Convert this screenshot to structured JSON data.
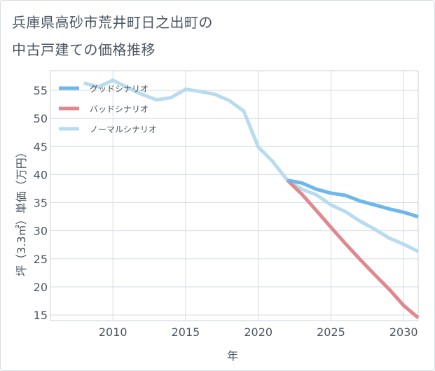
{
  "title_line1": "兵庫県高砂市荒井町日之出町の",
  "title_line2": "中古戸建ての価格推移",
  "chart_data": {
    "type": "line",
    "title": "兵庫県高砂市荒井町日之出町の中古戸建ての価格推移",
    "xlabel": "年",
    "ylabel": "坪（3.3㎡）単価（万円）",
    "xlim": [
      2005.7,
      2031
    ],
    "ylim": [
      14,
      58.5
    ],
    "x_ticks": [
      2010,
      2015,
      2020,
      2025,
      2030
    ],
    "y_ticks": [
      15,
      20,
      25,
      30,
      35,
      40,
      45,
      50,
      55
    ],
    "grid": true,
    "legend_position": "top-left",
    "series": [
      {
        "name": "グッドシナリオ",
        "color": "#6cb8ea",
        "x": [
          2022,
          2023,
          2024,
          2025,
          2026,
          2027,
          2028,
          2029,
          2030,
          2031
        ],
        "y": [
          39.0,
          38.5,
          37.4,
          36.7,
          36.3,
          35.3,
          34.6,
          33.9,
          33.3,
          32.5
        ]
      },
      {
        "name": "バッドシナリオ",
        "color": "#e0888e",
        "x": [
          2022,
          2023,
          2024,
          2025,
          2026,
          2027,
          2028,
          2029,
          2030,
          2031
        ],
        "y": [
          39.0,
          36.5,
          33.6,
          30.6,
          27.7,
          24.9,
          22.2,
          19.6,
          16.7,
          14.5
        ]
      },
      {
        "name": "ノーマルシナリオ",
        "color": "#b8dcee",
        "x": [
          2008,
          2009,
          2010,
          2011,
          2012,
          2013,
          2014,
          2015,
          2016,
          2017,
          2018,
          2019,
          2020,
          2021,
          2022,
          2023,
          2024,
          2025,
          2026,
          2027,
          2028,
          2029,
          2030,
          2031
        ],
        "y": [
          56.3,
          55.6,
          56.8,
          55.5,
          54.3,
          53.3,
          53.7,
          55.2,
          54.8,
          54.3,
          53.2,
          51.3,
          44.9,
          42.3,
          39.0,
          37.4,
          36.4,
          34.6,
          33.4,
          31.7,
          30.3,
          28.7,
          27.6,
          26.3
        ]
      }
    ]
  }
}
